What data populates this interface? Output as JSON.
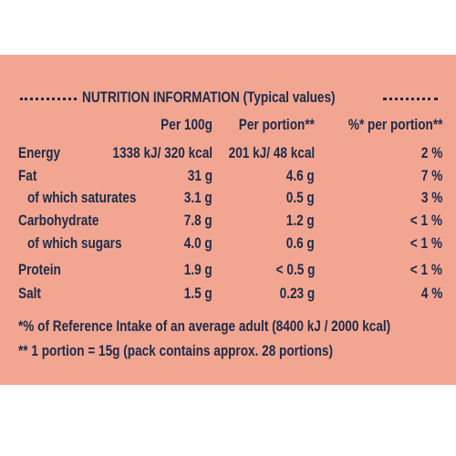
{
  "title": "NUTRITION INFORMATION (Typical values)",
  "columns": [
    "Per 100g",
    "Per portion**",
    "%* per portion**"
  ],
  "rows": [
    {
      "label": "Energy",
      "values": [
        "1338 kJ/ 320 kcal",
        "201 kJ/ 48 kcal",
        "2 %"
      ]
    },
    {
      "label": "Fat",
      "values": [
        "31 g",
        "4.6 g",
        "7 %"
      ],
      "sub": {
        "label": "of which saturates",
        "values": [
          "3.1 g",
          "0.5 g",
          "3 %"
        ]
      }
    },
    {
      "label": "Carbohydrate",
      "values": [
        "7.8 g",
        "1.2 g",
        "< 1 %"
      ],
      "sub": {
        "label": "of which sugars",
        "values": [
          "4.0 g",
          "0.6 g",
          "< 1 %"
        ]
      }
    },
    {
      "label": "Protein",
      "values": [
        "1.9 g",
        "< 0.5 g",
        "< 1 %"
      ]
    },
    {
      "label": "Salt",
      "values": [
        "1.5 g",
        "0.23 g",
        "4 %"
      ]
    }
  ],
  "footnotes": [
    "*% of Reference Intake of an average adult (8400 kJ / 2000 kcal)",
    "** 1 portion = 15g (pack contains approx. 28 portions)"
  ]
}
